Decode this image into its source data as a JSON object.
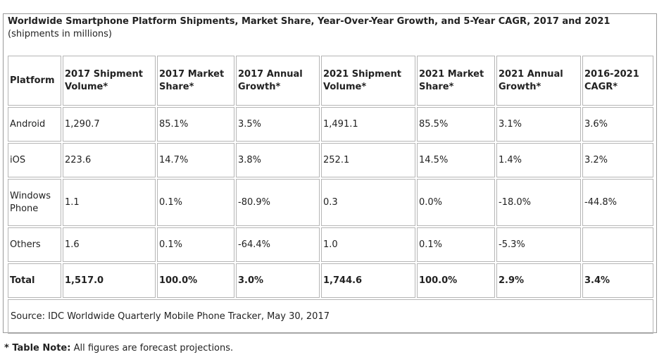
{
  "chart_data": {
    "type": "table",
    "title": "Worldwide Smartphone Platform Shipments, Market Share, Year-Over-Year Growth, and 5-Year CAGR, 2017 and 2021",
    "subtitle": "(shipments in millions)",
    "columns": [
      "Platform",
      "2017 Shipment Volume*",
      "2017 Market Share*",
      "2017 Annual Growth*",
      "2021 Shipment Volume*",
      "2021 Market Share*",
      "2021 Annual Growth*",
      "2016-2021 CAGR*"
    ],
    "rows": [
      [
        "Android",
        "1,290.7",
        "85.1%",
        "3.5%",
        "1,491.1",
        "85.5%",
        "3.1%",
        "3.6%"
      ],
      [
        "iOS",
        "223.6",
        "14.7%",
        "3.8%",
        "252.1",
        "14.5%",
        "1.4%",
        "3.2%"
      ],
      [
        "Windows Phone",
        "1.1",
        "0.1%",
        "-80.9%",
        "0.3",
        "0.0%",
        "-18.0%",
        "-44.8%"
      ],
      [
        "Others",
        "1.6",
        "0.1%",
        "-64.4%",
        "1.0",
        "0.1%",
        "-5.3%",
        ""
      ]
    ],
    "total": [
      "Total",
      "1,517.0",
      "100.0%",
      "3.0%",
      "1,744.6",
      "100.0%",
      "2.9%",
      "3.4%"
    ],
    "source": "Source: IDC Worldwide Quarterly Mobile Phone Tracker, May 30, 2017"
  },
  "footnote": {
    "label": "* Table Note:",
    "text": " All figures are forecast projections."
  }
}
